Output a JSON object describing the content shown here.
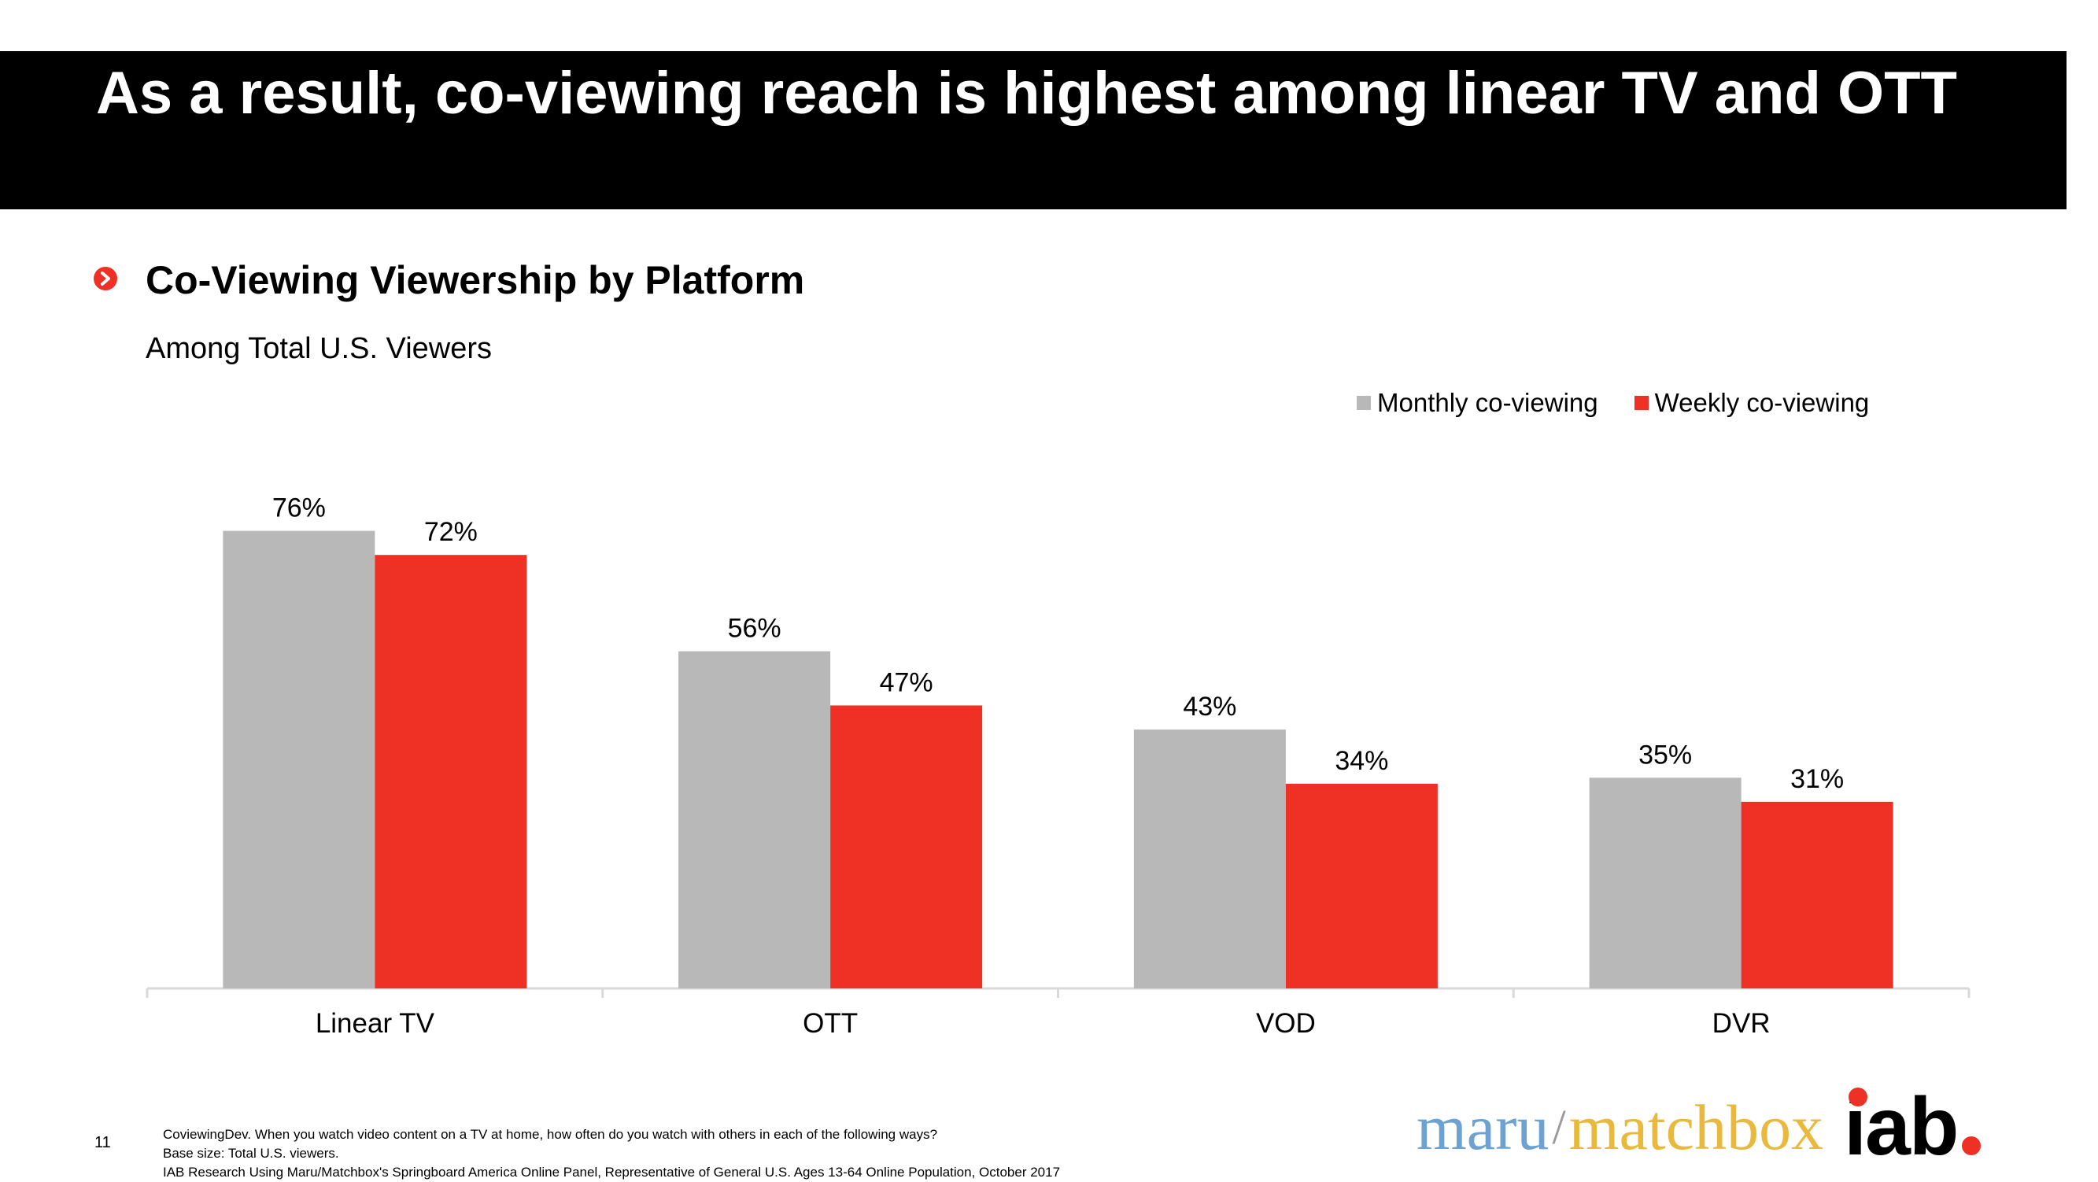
{
  "header": {
    "title": "As a result, co-viewing reach is highest among linear TV and OTT"
  },
  "section": {
    "bullet_icon": "chevron-right-icon",
    "subtitle": "Co-Viewing Viewership by Platform",
    "population": "Among Total U.S. Viewers"
  },
  "chart_data": {
    "type": "bar",
    "categories": [
      "Linear TV",
      "OTT",
      "VOD",
      "DVR"
    ],
    "series": [
      {
        "name": "Monthly co-viewing",
        "values": [
          76,
          56,
          43,
          35
        ],
        "color": "#b8b8b8"
      },
      {
        "name": "Weekly co-viewing",
        "values": [
          72,
          47,
          34,
          31
        ],
        "color": "#ee3124"
      }
    ],
    "value_suffix": "%",
    "title": "Co-Viewing Viewership by Platform",
    "xlabel": "",
    "ylabel": "",
    "ylim": [
      0,
      100
    ],
    "grid": false,
    "legend_position": "top-right"
  },
  "footer": {
    "page_number": "11",
    "notes": [
      "CoviewingDev. When you watch video content on a TV at home, how often do you watch with others in each of the following ways?",
      "Base size: Total U.S. viewers.",
      "IAB Research Using Maru/Matchbox's Springboard America Online Panel, Representative of General U.S. Ages 13-64 Online Population, October 2017"
    ]
  },
  "logo": {
    "maru": "maru",
    "slash": "/",
    "matchbox": "matchbox",
    "iab": "iab"
  }
}
